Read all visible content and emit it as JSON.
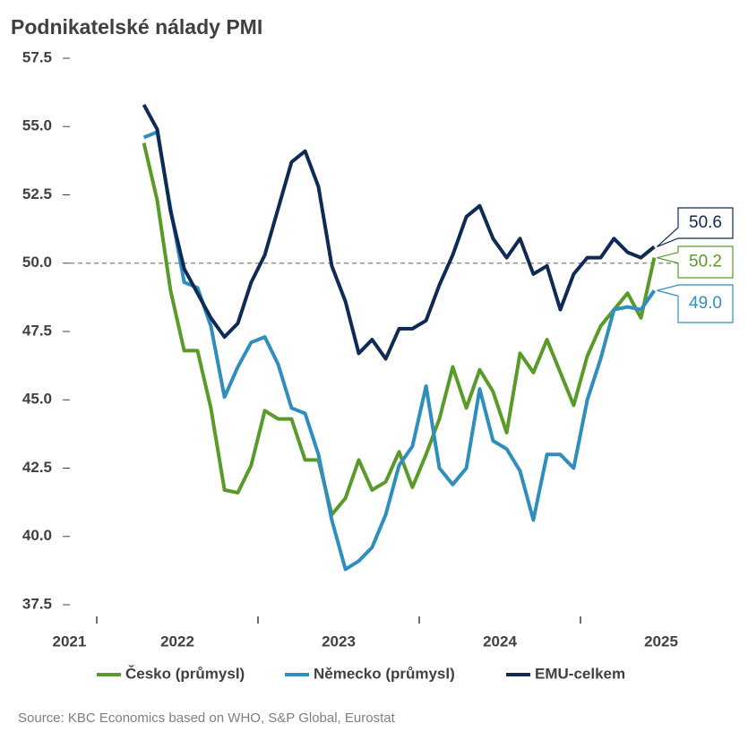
{
  "chart_data": {
    "type": "line",
    "title": "Podnikatelské nálady PMI",
    "source": "Source: KBC Economics based on WHO, S&P Global, Eurostat",
    "x": [
      2022.292,
      2022.375,
      2022.458,
      2022.542,
      2022.625,
      2022.708,
      2022.792,
      2022.875,
      2022.958,
      2023.042,
      2023.125,
      2023.208,
      2023.292,
      2023.375,
      2023.458,
      2023.542,
      2023.625,
      2023.708,
      2023.792,
      2023.875,
      2023.958,
      2024.042,
      2024.125,
      2024.208,
      2024.292,
      2024.375,
      2024.458,
      2024.542,
      2024.625,
      2024.708,
      2024.792,
      2024.875,
      2024.958,
      2025.042,
      2025.125,
      2025.208,
      2025.292,
      2025.375,
      2025.458
    ],
    "xlim": [
      2021.75,
      2026
    ],
    "xticks": [
      {
        "value": 2021.83,
        "label": "2021"
      },
      {
        "value": 2022.5,
        "label": "2022"
      },
      {
        "value": 2023.5,
        "label": "2023"
      },
      {
        "value": 2024.5,
        "label": "2024"
      },
      {
        "value": 2025.5,
        "label": "2025"
      }
    ],
    "x_tick_marks": [
      2022,
      2023,
      2024,
      2025
    ],
    "ylim": [
      37.5,
      57.5
    ],
    "yticks": [
      {
        "value": 37.5,
        "label": "37.5"
      },
      {
        "value": 40,
        "label": "40.0"
      },
      {
        "value": 42.5,
        "label": "42.5"
      },
      {
        "value": 45,
        "label": "45.0"
      },
      {
        "value": 47.5,
        "label": "47.5"
      },
      {
        "value": 50,
        "label": "50.0"
      },
      {
        "value": 52.5,
        "label": "52.5"
      },
      {
        "value": 55,
        "label": "55.0"
      },
      {
        "value": 57.5,
        "label": "57.5"
      }
    ],
    "reference_line": 50,
    "series": [
      {
        "name": "Česko (průmysl)",
        "color": "#5a9a28",
        "end_label": "50.2",
        "values": [
          54.4,
          52.3,
          49.0,
          46.8,
          46.8,
          44.7,
          41.7,
          41.6,
          42.6,
          44.6,
          44.3,
          44.3,
          42.8,
          42.8,
          40.8,
          41.4,
          42.8,
          41.7,
          42.0,
          43.1,
          41.8,
          43.0,
          44.3,
          46.2,
          44.7,
          46.1,
          45.3,
          43.8,
          46.7,
          46.0,
          47.2,
          46.0,
          44.8,
          46.6,
          47.7,
          48.3,
          48.9,
          48.0,
          50.2
        ]
      },
      {
        "name": "Německo (průmysl)",
        "color": "#2e8fbf",
        "end_label": "49.0",
        "values": [
          54.6,
          54.8,
          52.0,
          49.3,
          49.1,
          47.7,
          45.1,
          46.2,
          47.1,
          47.3,
          46.3,
          44.7,
          44.5,
          43.0,
          40.6,
          38.8,
          39.1,
          39.6,
          40.8,
          42.6,
          43.3,
          45.5,
          42.5,
          41.9,
          42.5,
          45.4,
          43.5,
          43.2,
          42.4,
          40.6,
          43.0,
          43.0,
          42.5,
          45.0,
          46.5,
          48.3,
          48.4,
          48.3,
          49.0
        ]
      },
      {
        "name": "EMU-celkem",
        "color": "#0e2a55",
        "end_label": "50.6",
        "values": [
          55.8,
          54.9,
          51.9,
          49.8,
          48.9,
          48.0,
          47.3,
          47.8,
          49.3,
          50.3,
          52.0,
          53.7,
          54.1,
          52.8,
          49.9,
          48.6,
          46.7,
          47.2,
          46.5,
          47.6,
          47.6,
          47.9,
          49.2,
          50.3,
          51.7,
          52.1,
          50.9,
          50.2,
          50.9,
          49.6,
          49.9,
          48.3,
          49.6,
          50.2,
          50.2,
          50.9,
          50.4,
          50.2,
          50.6
        ]
      }
    ]
  }
}
